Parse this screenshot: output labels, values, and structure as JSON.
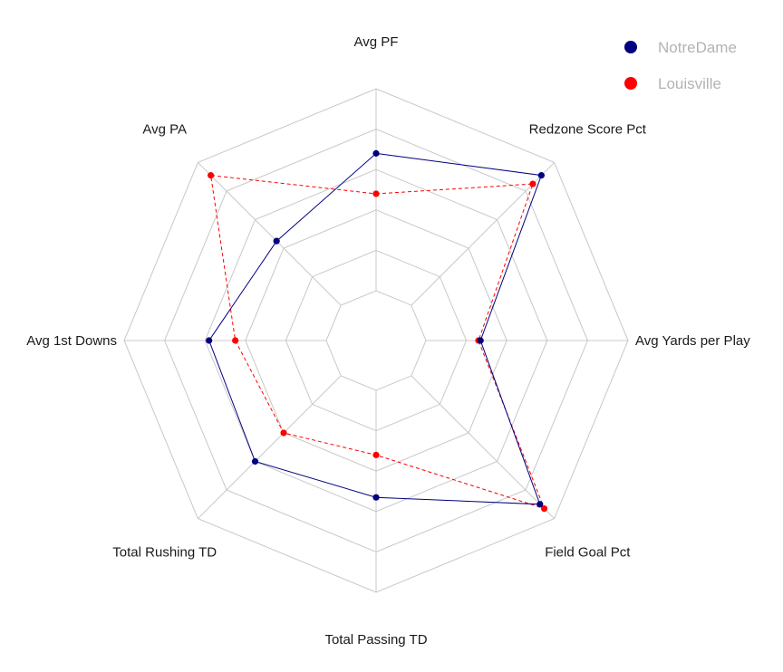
{
  "chart_data": {
    "type": "radar",
    "axes": [
      "Avg PF",
      "Redzone Score Pct",
      "Avg Yards per Play",
      "Field Goal Pct",
      "Total Passing TD",
      "Total Rushing TD",
      "Avg 1st Downs",
      "Avg PA"
    ],
    "range": [
      0,
      1
    ],
    "grid": true,
    "grid_levels": 6,
    "legend_position": "top-right",
    "series": [
      {
        "name": "NotreDame",
        "color": "#000080",
        "line": "solid",
        "values": [
          0.68,
          0.91,
          0.27,
          0.9,
          0.53,
          0.6,
          0.58,
          0.45
        ]
      },
      {
        "name": "Louisville",
        "color": "#ff0000",
        "line": "dashed",
        "values": [
          0.48,
          0.85,
          0.26,
          0.93,
          0.32,
          0.4,
          0.45,
          0.91
        ]
      }
    ]
  }
}
